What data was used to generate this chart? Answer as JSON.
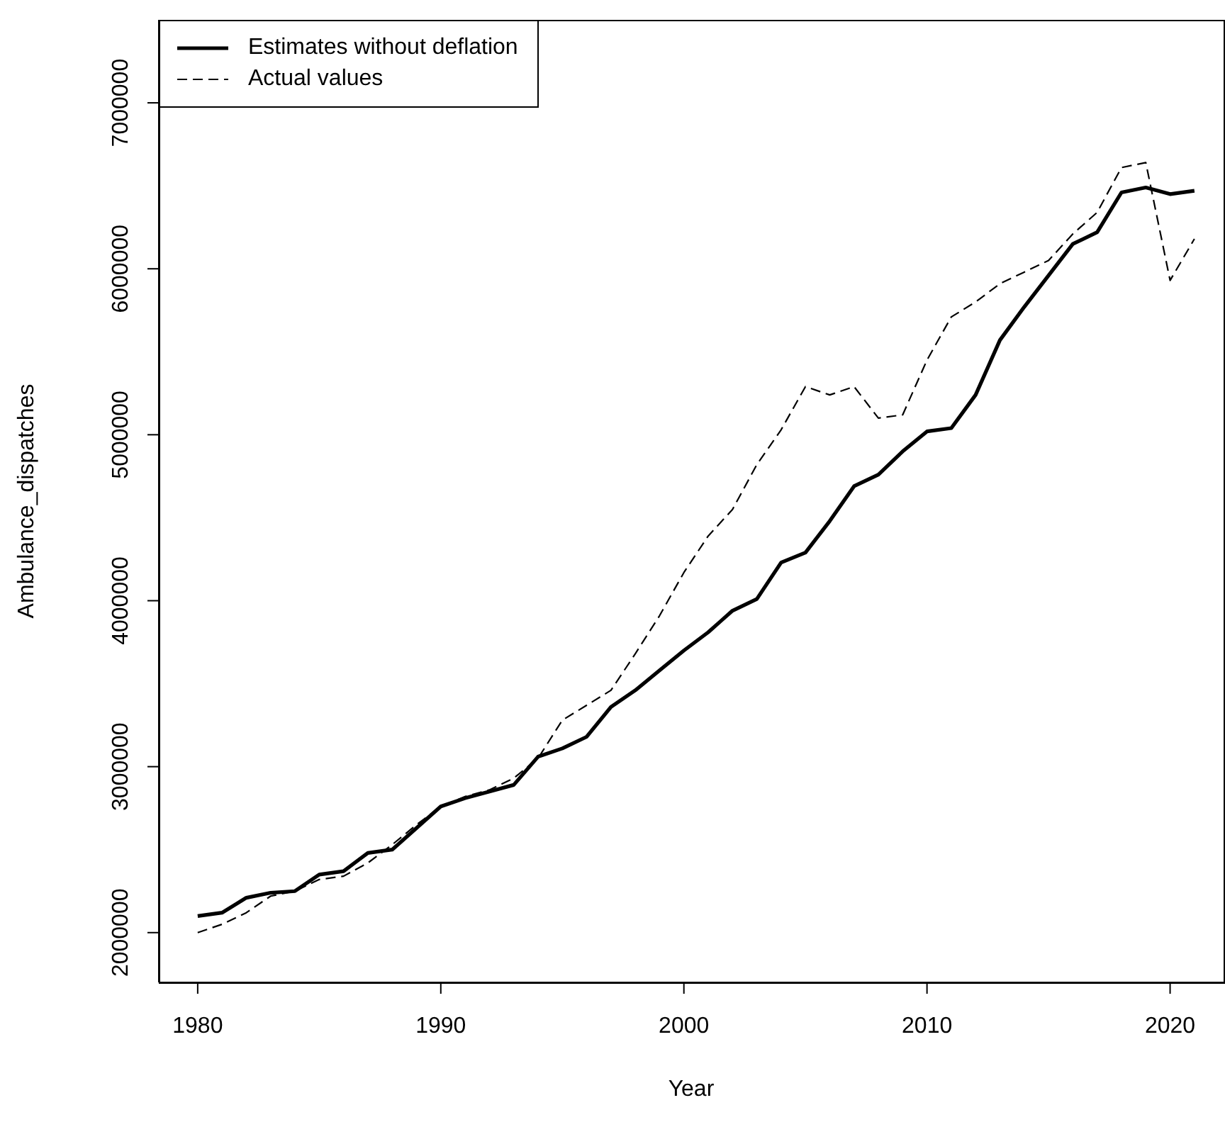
{
  "chart_data": {
    "type": "line",
    "xlabel": "Year",
    "ylabel": "Ambulance_dispatches",
    "x": [
      1980,
      1981,
      1982,
      1983,
      1984,
      1985,
      1986,
      1987,
      1988,
      1989,
      1990,
      1991,
      1992,
      1993,
      1994,
      1995,
      1996,
      1997,
      1998,
      1999,
      2000,
      2001,
      2002,
      2003,
      2004,
      2005,
      2006,
      2007,
      2008,
      2009,
      2010,
      2011,
      2012,
      2013,
      2014,
      2015,
      2016,
      2017,
      2018,
      2019,
      2020,
      2021
    ],
    "series": [
      {
        "name": "Estimates without deflation",
        "color": "#000000",
        "line_style": "solid",
        "values": [
          2100000,
          2120000,
          2210000,
          2240000,
          2250000,
          2350000,
          2370000,
          2480000,
          2500000,
          2630000,
          2760000,
          2810000,
          2850000,
          2890000,
          3060000,
          3110000,
          3180000,
          3360000,
          3460000,
          3580000,
          3700000,
          3810000,
          3940000,
          4010000,
          4230000,
          4290000,
          4480000,
          4690000,
          4760000,
          4900000,
          5020000,
          5040000,
          5240000,
          5570000,
          5770000,
          5960000,
          6150000,
          6220000,
          6460000,
          6490000,
          6450000,
          6470000
        ]
      },
      {
        "name": "Actual values",
        "color": "#000000",
        "line_style": "dashed",
        "values": [
          2000000,
          2050000,
          2120000,
          2220000,
          2250000,
          2320000,
          2340000,
          2420000,
          2530000,
          2650000,
          2760000,
          2820000,
          2860000,
          2930000,
          3050000,
          3280000,
          3370000,
          3460000,
          3680000,
          3910000,
          4170000,
          4390000,
          4550000,
          4820000,
          5030000,
          5290000,
          5240000,
          5290000,
          5100000,
          5120000,
          5450000,
          5710000,
          5800000,
          5910000,
          5980000,
          6050000,
          6210000,
          6340000,
          6610000,
          6640000,
          5930000,
          6180000
        ]
      }
    ],
    "xlim": [
      1978.4,
      2022.2
    ],
    "xticks": [
      1980,
      1990,
      2000,
      2010,
      2020
    ],
    "ylim": [
      1700000,
      7500000
    ],
    "yticks": [
      2000000,
      3000000,
      4000000,
      5000000,
      6000000,
      7000000
    ],
    "grid": false,
    "legend": "top left",
    "marker": "none"
  }
}
